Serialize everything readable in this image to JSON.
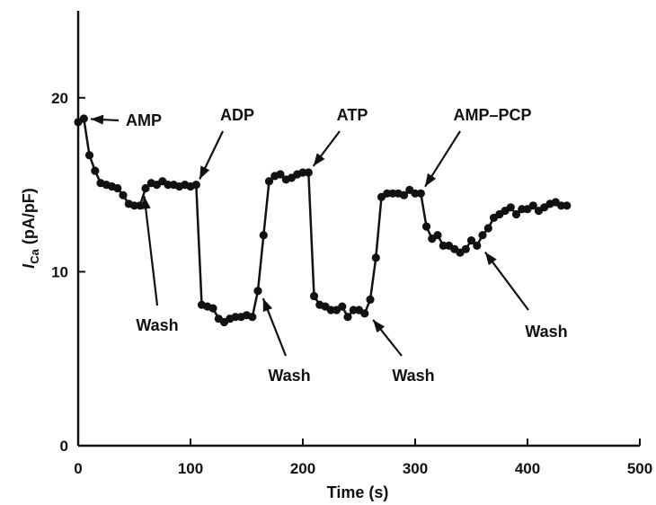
{
  "chart_data": {
    "type": "line",
    "xlabel": "Time (s)",
    "ylabel_main": "I",
    "ylabel_sub": "Ca",
    "ylabel_unit": "(pA/pF)",
    "xlim": [
      0,
      500
    ],
    "ylim": [
      0,
      25
    ],
    "xticks": [
      0,
      100,
      200,
      300,
      400,
      500
    ],
    "yticks": [
      0,
      10,
      20
    ],
    "grid": false,
    "series": [
      {
        "x": [
          0,
          5,
          10,
          15,
          20,
          25,
          30,
          35,
          40,
          45,
          50,
          55,
          60,
          65,
          70,
          75,
          80,
          85,
          90,
          95,
          100,
          105,
          110,
          115,
          120,
          125,
          130,
          135,
          140,
          145,
          150,
          155,
          160,
          165,
          170,
          175,
          180,
          185,
          190,
          195,
          200,
          205,
          210,
          215,
          220,
          225,
          230,
          235,
          240,
          245,
          250,
          255,
          260,
          265,
          270,
          275,
          280,
          285,
          290,
          295,
          300,
          305,
          310,
          315,
          320,
          325,
          330,
          335,
          340,
          345,
          350,
          355,
          360,
          365,
          370,
          375,
          380,
          385,
          390,
          395,
          400,
          405,
          410,
          415,
          420,
          425,
          430,
          435
        ],
        "y": [
          18.6,
          18.8,
          16.7,
          15.8,
          15.1,
          15.0,
          14.9,
          14.8,
          14.4,
          13.9,
          13.8,
          13.8,
          14.8,
          15.1,
          15.0,
          15.2,
          15.0,
          15.0,
          14.9,
          15.0,
          14.9,
          15.0,
          8.1,
          8.0,
          7.9,
          7.3,
          7.1,
          7.3,
          7.4,
          7.4,
          7.5,
          7.4,
          8.9,
          12.1,
          15.2,
          15.5,
          15.6,
          15.3,
          15.4,
          15.6,
          15.7,
          15.7,
          8.6,
          8.1,
          8.0,
          7.8,
          7.8,
          8.0,
          7.4,
          7.8,
          7.8,
          7.6,
          8.4,
          10.8,
          14.3,
          14.5,
          14.5,
          14.5,
          14.4,
          14.7,
          14.5,
          14.5,
          12.6,
          11.9,
          12.1,
          11.5,
          11.5,
          11.3,
          11.1,
          11.3,
          11.8,
          11.5,
          12.1,
          12.5,
          13.1,
          13.3,
          13.5,
          13.7,
          13.3,
          13.6,
          13.6,
          13.8,
          13.5,
          13.7,
          13.9,
          14.0,
          13.8,
          13.8
        ]
      }
    ],
    "annotations": [
      {
        "text": "AMP",
        "x": 4,
        "y": 18.8
      },
      {
        "text": "ADP",
        "x": 105,
        "y": 14.9
      },
      {
        "text": "ATP",
        "x": 205,
        "y": 15.7
      },
      {
        "text": "AMP–PCP",
        "x": 305,
        "y": 14.5
      },
      {
        "text": "Wash",
        "x": 58,
        "y": 14.8
      },
      {
        "text": "Wash",
        "x": 162,
        "y": 8.9
      },
      {
        "text": "Wash",
        "x": 258,
        "y": 7.6
      },
      {
        "text": "Wash",
        "x": 358,
        "y": 11.5
      }
    ]
  }
}
